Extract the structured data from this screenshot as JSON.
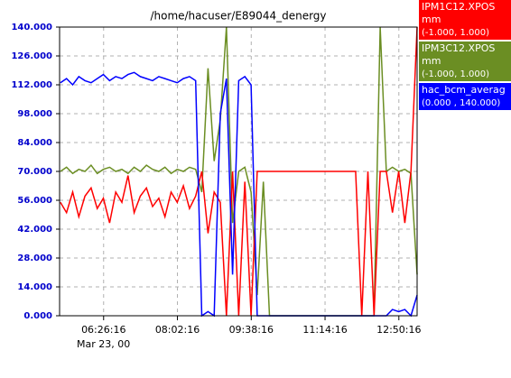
{
  "chart_data": {
    "type": "line",
    "title": "/home/hacuser/E89044_denergy",
    "x_date_label": "Mar 23, 00",
    "x": [
      "05:30",
      "05:38",
      "05:46",
      "05:54",
      "06:02",
      "06:10",
      "06:18",
      "06:26",
      "06:34",
      "06:42",
      "06:50",
      "06:58",
      "07:06",
      "07:14",
      "07:22",
      "07:30",
      "07:38",
      "07:46",
      "07:54",
      "08:02",
      "08:10",
      "08:18",
      "08:26",
      "08:34",
      "08:42",
      "08:50",
      "08:58",
      "09:06",
      "09:14",
      "09:22",
      "09:30",
      "09:38",
      "09:46",
      "09:54",
      "10:02",
      "10:10",
      "10:18",
      "10:26",
      "10:34",
      "10:42",
      "10:50",
      "10:58",
      "11:06",
      "11:14",
      "11:22",
      "11:30",
      "11:38",
      "11:46",
      "11:54",
      "12:02",
      "12:10",
      "12:18",
      "12:26",
      "12:34",
      "12:42",
      "12:50",
      "12:58",
      "13:06",
      "13:14"
    ],
    "xlim": [
      "05:29",
      "13:14"
    ],
    "xticks": [
      "06:26:16",
      "08:02:16",
      "09:38:16",
      "11:14:16",
      "12:50:16"
    ],
    "ylim": [
      0,
      140
    ],
    "yticks": [
      {
        "value": 0,
        "label": "0.000"
      },
      {
        "value": 14,
        "label": "14.000"
      },
      {
        "value": 28,
        "label": "28.000"
      },
      {
        "value": 42,
        "label": "42.000"
      },
      {
        "value": 56,
        "label": "56.000"
      },
      {
        "value": 70,
        "label": "70.000"
      },
      {
        "value": 84,
        "label": "84.000"
      },
      {
        "value": 98,
        "label": "98.000"
      },
      {
        "value": 112,
        "label": "112.000"
      },
      {
        "value": 126,
        "label": "126.000"
      },
      {
        "value": 140,
        "label": "140.000"
      }
    ],
    "grid": true,
    "series": [
      {
        "name": "IPM3C12.XPOS",
        "unit": "mm",
        "range": "(-1.000,  1.000)",
        "color": "#6b8e23",
        "values": [
          70,
          72,
          69,
          71,
          70,
          73,
          69,
          71,
          72,
          70,
          71,
          69,
          72,
          70,
          73,
          71,
          70,
          72,
          69,
          71,
          70,
          72,
          71,
          60,
          120,
          75,
          95,
          140,
          45,
          70,
          72,
          60,
          10,
          65,
          0,
          0,
          0,
          0,
          0,
          0,
          0,
          0,
          0,
          0,
          0,
          0,
          0,
          0,
          0,
          0,
          0,
          0,
          140,
          70,
          72,
          70,
          71,
          69,
          20
        ]
      },
      {
        "name": "IPM1C12.XPOS",
        "unit": "mm",
        "range": "(-1.000,  1.000)",
        "color": "#ff0000",
        "values": [
          55,
          50,
          60,
          48,
          58,
          62,
          52,
          57,
          45,
          60,
          55,
          68,
          50,
          58,
          62,
          53,
          57,
          48,
          60,
          55,
          63,
          52,
          58,
          70,
          40,
          60,
          55,
          0,
          70,
          0,
          65,
          0,
          70,
          70,
          70,
          70,
          70,
          70,
          70,
          70,
          70,
          70,
          70,
          70,
          70,
          70,
          70,
          70,
          70,
          0,
          70,
          0,
          70,
          70,
          50,
          70,
          45,
          70,
          140
        ]
      },
      {
        "name": "hac_bcm_averag",
        "range": "(0.000 ,  140.000)",
        "color": "#0000ff",
        "values": [
          113,
          115,
          112,
          116,
          114,
          113,
          115,
          117,
          114,
          116,
          115,
          117,
          118,
          116,
          115,
          114,
          116,
          115,
          114,
          113,
          115,
          116,
          114,
          0,
          2,
          0,
          98,
          115,
          20,
          114,
          116,
          112,
          0,
          0,
          0,
          0,
          0,
          0,
          0,
          0,
          0,
          0,
          0,
          0,
          0,
          0,
          0,
          0,
          0,
          0,
          0,
          0,
          0,
          0,
          3,
          2,
          3,
          0,
          10
        ]
      }
    ],
    "legend_order": [
      1,
      0,
      2
    ]
  }
}
